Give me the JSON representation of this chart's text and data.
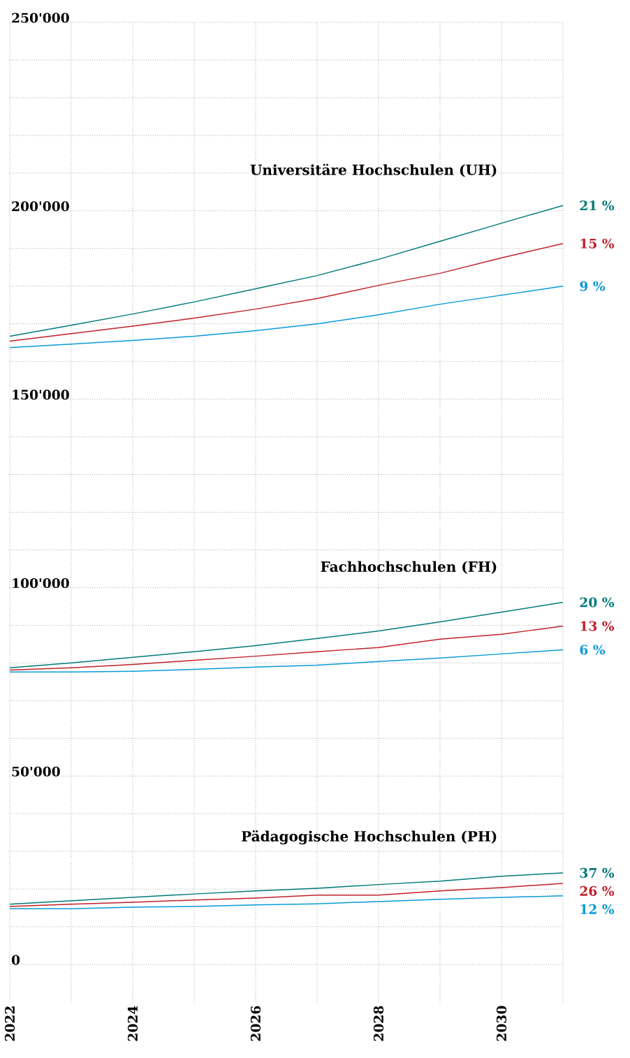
{
  "chart_data": {
    "type": "line",
    "x": [
      2022,
      2023,
      2024,
      2025,
      2026,
      2027,
      2028,
      2029,
      2030,
      2031
    ],
    "series": [
      {
        "color": "#007a78",
        "values": [
          166700,
          169600,
          172600,
          175800,
          179300,
          182800,
          187100,
          191900,
          196700,
          201400
        ]
      },
      {
        "color": "#c0202a",
        "values": [
          165400,
          167400,
          169400,
          171500,
          173900,
          176700,
          180200,
          183400,
          187500,
          191300
        ]
      },
      {
        "color": "#0a9ad8",
        "values": [
          163700,
          164600,
          165600,
          166700,
          168200,
          170000,
          172400,
          175200,
          177600,
          180000
        ]
      },
      {
        "color": "#007a78",
        "values": [
          78700,
          80000,
          81500,
          83000,
          84600,
          86500,
          88500,
          90900,
          93500,
          96100
        ]
      },
      {
        "color": "#c0202a",
        "values": [
          78100,
          78700,
          79600,
          80700,
          81800,
          83000,
          84100,
          86300,
          87600,
          89800
        ]
      },
      {
        "color": "#0a9ad8",
        "values": [
          77600,
          77600,
          77800,
          78300,
          78900,
          79400,
          80400,
          81300,
          82400,
          83500
        ]
      },
      {
        "color": "#007a78",
        "values": [
          16000,
          16900,
          17800,
          18700,
          19500,
          20200,
          21200,
          22100,
          23400,
          24300
        ]
      },
      {
        "color": "#c0202a",
        "values": [
          15400,
          16000,
          16500,
          17100,
          17600,
          18400,
          18400,
          19500,
          20400,
          21500
        ]
      },
      {
        "color": "#0a9ad8",
        "values": [
          14800,
          14800,
          15200,
          15400,
          15800,
          16100,
          16700,
          17300,
          17800,
          18200
        ]
      }
    ],
    "annotations": [
      "Universitäre Hochschulen (UH)",
      "21 %",
      "15 %",
      "9 %",
      "Fachhochschulen (FH)",
      "20 %",
      "13 %",
      "6 %",
      "Pädagogische Hochschulen (PH)",
      "37 %",
      "26 %",
      "12 %"
    ],
    "xlim": [
      2022,
      2031
    ],
    "xticks": [
      2022,
      {
        "value": 2023,
        "label": null
      },
      2024,
      {
        "value": 2025,
        "label": null
      },
      2026,
      {
        "value": 2027,
        "label": null
      },
      2028,
      {
        "value": 2029,
        "label": null
      },
      2030,
      {
        "value": 2031,
        "label": null
      }
    ],
    "ylim": [
      -10000,
      250000
    ],
    "yticks": [
      {
        "value": 0,
        "label": "0"
      },
      {
        "value": 10000,
        "label": null
      },
      {
        "value": 20000,
        "label": null
      },
      {
        "value": 30000,
        "label": null
      },
      {
        "value": 40000,
        "label": null
      },
      {
        "value": 50000,
        "label": "50'000"
      },
      {
        "value": 60000,
        "label": null
      },
      {
        "value": 70000,
        "label": null
      },
      {
        "value": 80000,
        "label": null
      },
      {
        "value": 90000,
        "label": null
      },
      {
        "value": 100000,
        "label": "100'000"
      },
      {
        "value": 110000,
        "label": null
      },
      {
        "value": 120000,
        "label": null
      },
      {
        "value": 130000,
        "label": null
      },
      {
        "value": 140000,
        "label": null
      },
      {
        "value": 150000,
        "label": "150'000"
      },
      {
        "value": 160000,
        "label": null
      },
      {
        "value": 170000,
        "label": null
      },
      {
        "value": 180000,
        "label": null
      },
      {
        "value": 190000,
        "label": null
      },
      {
        "value": 200000,
        "label": "200'000"
      },
      {
        "value": 210000,
        "label": null
      },
      {
        "value": 220000,
        "label": null
      },
      {
        "value": 230000,
        "label": null
      },
      {
        "value": 240000,
        "label": null
      },
      {
        "value": 250000,
        "label": "250'000"
      }
    ],
    "grid": true
  }
}
